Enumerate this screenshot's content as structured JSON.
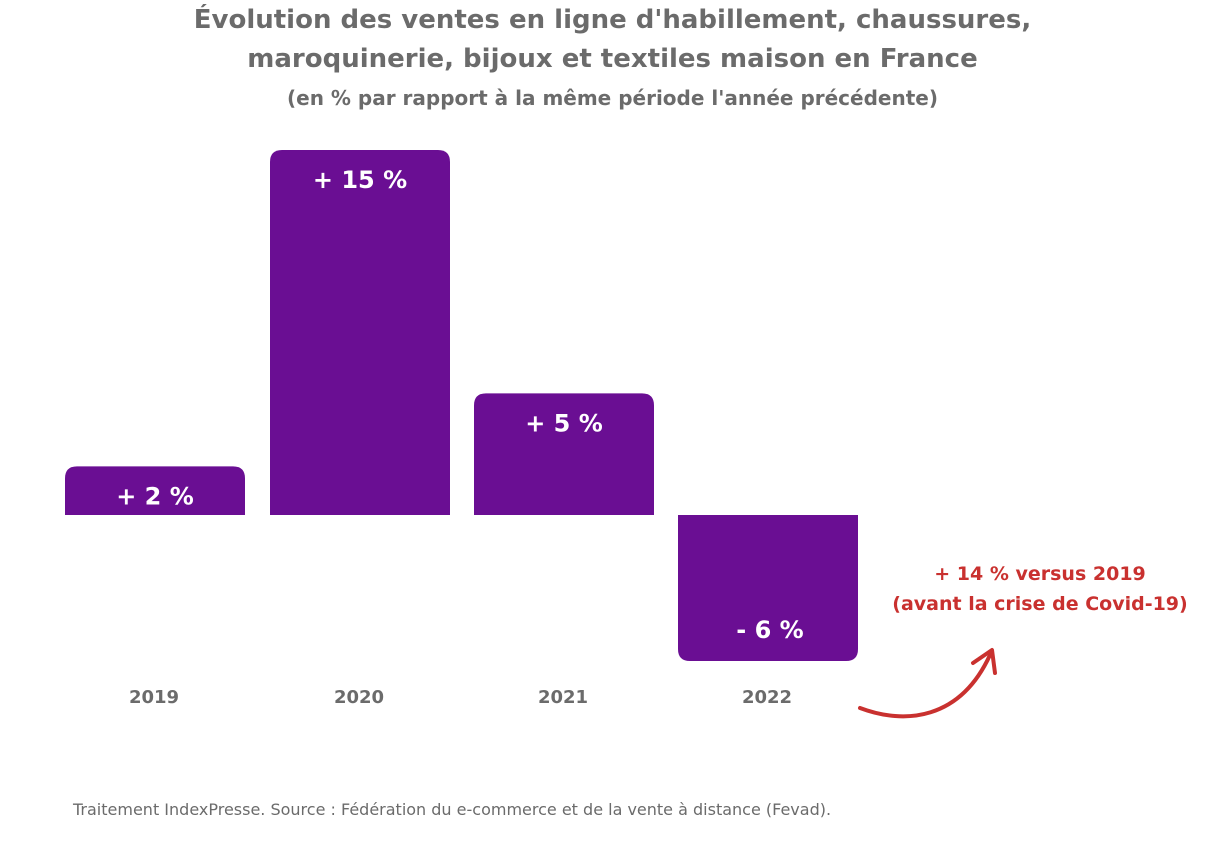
{
  "colors": {
    "bar": "#6a0e93",
    "title": "#6b6b6b",
    "tick": "#6b6b6b",
    "annotation": "#c9312f",
    "arrow": "#c9312f",
    "source": "#6b6b6b"
  },
  "chart_data": {
    "type": "bar",
    "title": "Évolution des ventes en ligne d'habillement, chaussures, maroquinerie, bijoux et textiles maison en France",
    "title_lines": [
      "Évolution des ventes en ligne d'habillement, chaussures,",
      "maroquinerie, bijoux et textiles maison en France"
    ],
    "subtitle": "(en % par rapport à la même période l'année précédente)",
    "categories": [
      "2019",
      "2020",
      "2021",
      "2022"
    ],
    "values": [
      2,
      15,
      5,
      -6
    ],
    "value_labels": [
      "+ 2 %",
      "+ 15 %",
      "+ 5 %",
      "- 6 %"
    ],
    "unit": "%",
    "xlabel": "",
    "ylabel": "",
    "ylim": [
      -6,
      15
    ],
    "grid": false,
    "legend": "none"
  },
  "annotation": {
    "line1": "+ 14 % versus 2019",
    "line2": "(avant la crise de Covid-19)",
    "arrow_icon": "curved-arrow-icon"
  },
  "source": "Traitement IndexPresse. Source : Fédération du e-commerce et de la vente à distance (Fevad)."
}
